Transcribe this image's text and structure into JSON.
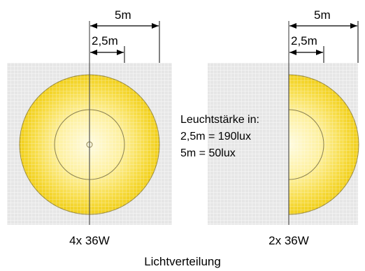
{
  "left_diagram": {
    "dim_outer": "5m",
    "dim_inner": "2,5m",
    "caption": "4x 36W"
  },
  "right_diagram": {
    "dim_outer": "5m",
    "dim_inner": "2,5m",
    "caption": "2x 36W"
  },
  "info": {
    "line1": "Leuchtstärke in:",
    "line2": "2,5m = 190lux",
    "line3": "5m = 50lux"
  },
  "footer": {
    "title": "Lichtverteilung"
  },
  "colors": {
    "grid_background": "#ececec",
    "grid_line": "#ffffff",
    "yellow_outer": "#f2d21a",
    "yellow_inner": "#fdf3b0",
    "circle_stroke": "#8a8050",
    "axis": "#555555"
  }
}
